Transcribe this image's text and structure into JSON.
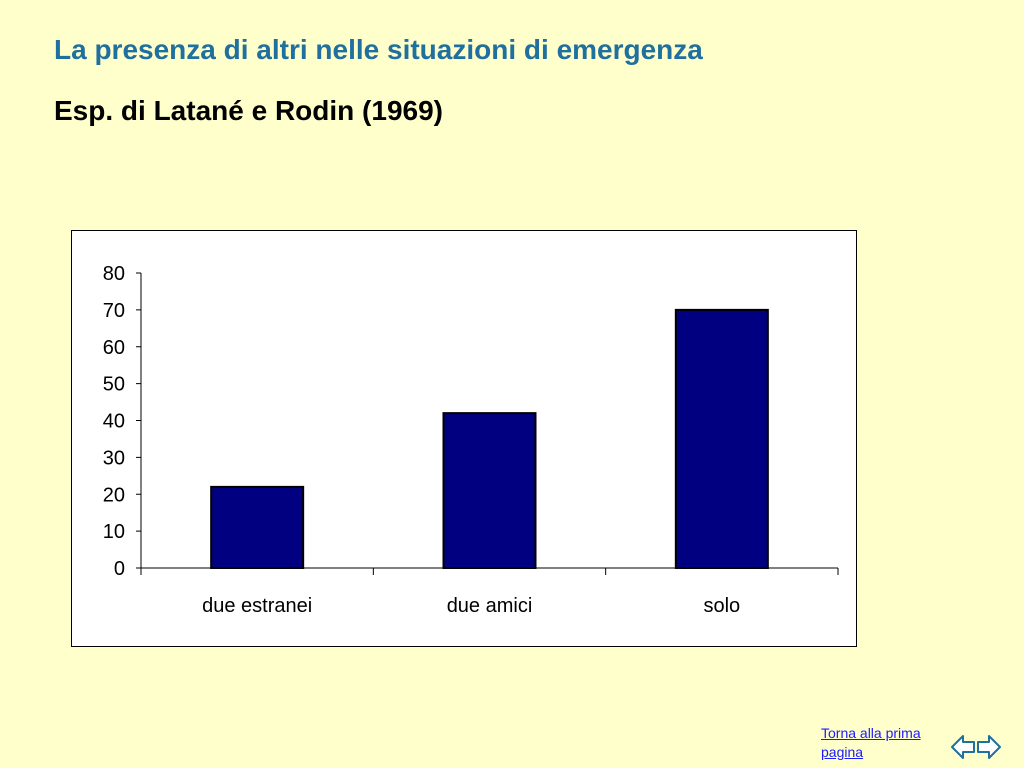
{
  "slide": {
    "title": "La presenza di altri nelle situazioni di emergenza",
    "subtitle": "Esp. di Latané e Rodin (1969)",
    "home_link": "Torna alla prima pagina"
  },
  "icons": {
    "back": "arrow-left-icon",
    "forward": "arrow-right-icon"
  },
  "colors": {
    "background": "#ffffcc",
    "title": "#1f6f9f",
    "bar": "#000080",
    "link": "#1a1aff"
  },
  "chart_data": {
    "type": "bar",
    "categories": [
      "due estranei",
      "due amici",
      "solo"
    ],
    "values": [
      22,
      42,
      70
    ],
    "ylim": [
      0,
      80
    ],
    "yticks": [
      0,
      10,
      20,
      30,
      40,
      50,
      60,
      70,
      80
    ],
    "grid": false,
    "legend": "none",
    "title": "",
    "xlabel": "",
    "ylabel": ""
  }
}
